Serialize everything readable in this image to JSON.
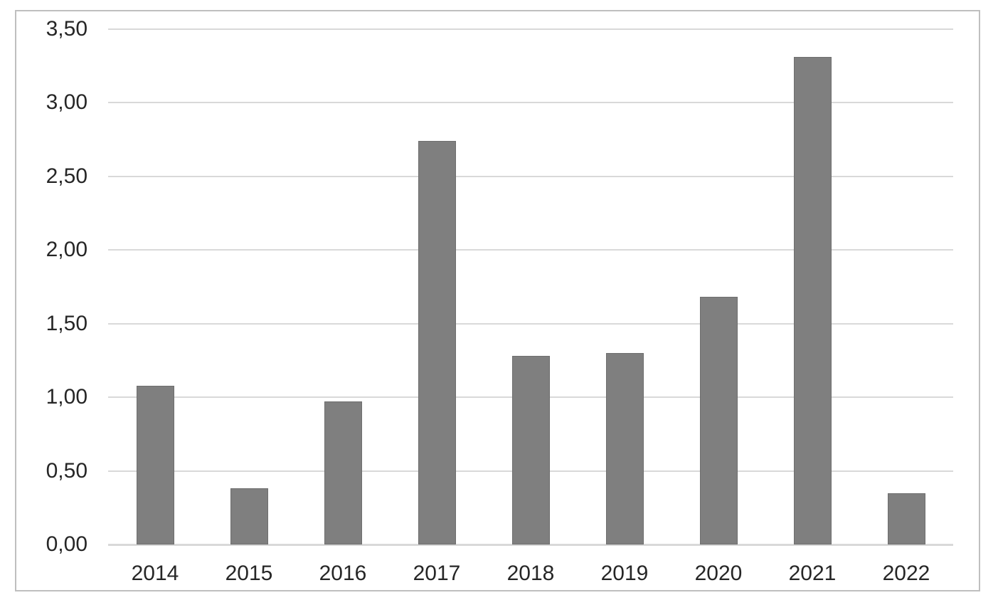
{
  "chart_data": {
    "type": "bar",
    "categories": [
      "2014",
      "2015",
      "2016",
      "2017",
      "2018",
      "2019",
      "2020",
      "2021",
      "2022"
    ],
    "values": [
      1.08,
      0.38,
      0.97,
      2.74,
      1.28,
      1.3,
      1.68,
      3.31,
      0.35
    ],
    "title": "",
    "xlabel": "",
    "ylabel": "",
    "ylim": [
      0,
      3.5
    ],
    "ytick_step": 0.5,
    "ytick_labels": [
      "0,00",
      "0,50",
      "1,00",
      "1,50",
      "2,00",
      "2,50",
      "3,00",
      "3,50"
    ],
    "decimal_separator": ",",
    "grid": true,
    "legend_position": "none",
    "colors": {
      "bar": "#7f7f7f",
      "bar_border": "#6e6e6e",
      "gridline": "#d9d9d9",
      "axis_text": "#262626",
      "frame_border": "#bfbfbf",
      "background": "#ffffff"
    }
  }
}
